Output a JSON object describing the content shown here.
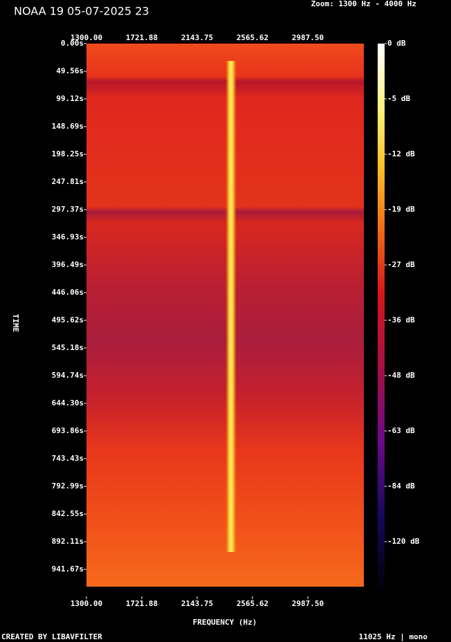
{
  "chart_data": {
    "type": "spectrogram",
    "title": "NOAA 19 05-07-2025 23",
    "subtitle": "Zoom: 1300 Hz - 4000 Hz",
    "x_label": "FREQUENCY (Hz)",
    "y_label": "TIME",
    "footer_left": "CREATED BY LIBAVFILTER",
    "footer_right": "11025 Hz | mono",
    "xlim": [
      1300,
      3414.6
    ],
    "xticks": [
      {
        "value": 1300,
        "label": "1300.00"
      },
      {
        "value": 1721.88,
        "label": "1721.88"
      },
      {
        "value": 2143.75,
        "label": "2143.75"
      },
      {
        "value": 2565.62,
        "label": "2565.62"
      },
      {
        "value": 2987.5,
        "label": "2987.50"
      }
    ],
    "ylim": [
      0,
      972.6
    ],
    "yticks": [
      {
        "value": 0,
        "label": "0.00s"
      },
      {
        "value": 49.56,
        "label": "49.56s"
      },
      {
        "value": 99.12,
        "label": "99.12s"
      },
      {
        "value": 148.69,
        "label": "148.69s"
      },
      {
        "value": 198.25,
        "label": "198.25s"
      },
      {
        "value": 247.81,
        "label": "247.81s"
      },
      {
        "value": 297.37,
        "label": "297.37s"
      },
      {
        "value": 346.93,
        "label": "346.93s"
      },
      {
        "value": 396.49,
        "label": "396.49s"
      },
      {
        "value": 446.06,
        "label": "446.06s"
      },
      {
        "value": 495.62,
        "label": "495.62s"
      },
      {
        "value": 545.18,
        "label": "545.18s"
      },
      {
        "value": 594.74,
        "label": "594.74s"
      },
      {
        "value": 644.3,
        "label": "644.30s"
      },
      {
        "value": 693.86,
        "label": "693.86s"
      },
      {
        "value": 743.43,
        "label": "743.43s"
      },
      {
        "value": 792.99,
        "label": "792.99s"
      },
      {
        "value": 842.55,
        "label": "842.55s"
      },
      {
        "value": 892.11,
        "label": "892.11s"
      },
      {
        "value": 941.67,
        "label": "941.67s"
      }
    ],
    "colorbar_ticks": [
      {
        "value": 0,
        "label": "0 dB"
      },
      {
        "value": -5,
        "label": "-5 dB"
      },
      {
        "value": -12,
        "label": "-12 dB"
      },
      {
        "value": -19,
        "label": "-19 dB"
      },
      {
        "value": -27,
        "label": "-27 dB"
      },
      {
        "value": -36,
        "label": "-36 dB"
      },
      {
        "value": -48,
        "label": "-48 dB"
      },
      {
        "value": -63,
        "label": "-63 dB"
      },
      {
        "value": -84,
        "label": "-84 dB"
      },
      {
        "value": -120,
        "label": "-120 dB"
      }
    ]
  }
}
